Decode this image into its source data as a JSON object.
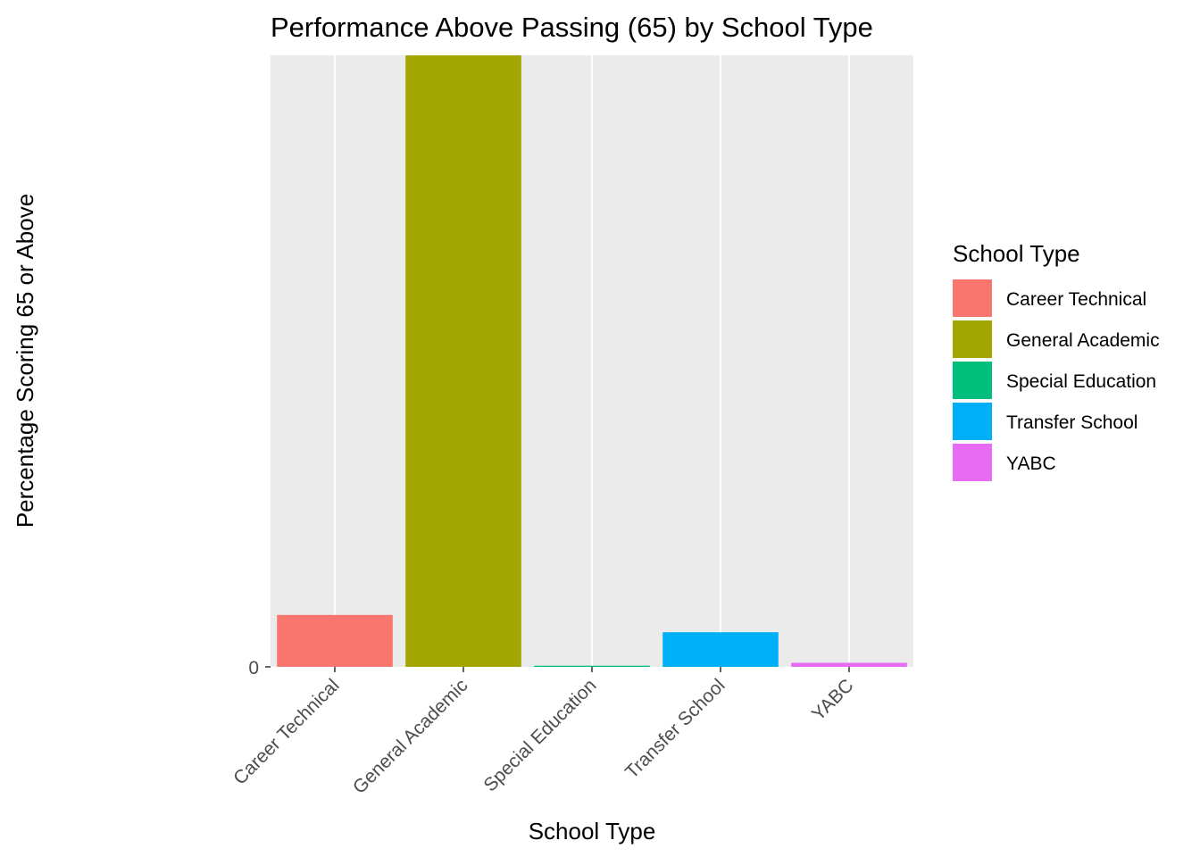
{
  "chart_data": {
    "type": "bar",
    "title": "Performance Above Passing (65) by School Type",
    "xlabel": "School Type",
    "ylabel": "Percentage Scoring 65 or Above",
    "categories": [
      "Career Technical",
      "General Academic",
      "Special Education",
      "Transfer School",
      "YABC"
    ],
    "values": [
      4.5,
      53.0,
      0.1,
      3.0,
      0.35
    ],
    "ylim": [
      0,
      53
    ],
    "colors": [
      "#F8766D",
      "#A3A500",
      "#00BF7D",
      "#00B0F6",
      "#E76BF3"
    ],
    "y_tick_label": "0",
    "grid": true,
    "legend": {
      "title": "School Type",
      "position": "right",
      "entries": [
        "Career Technical",
        "General Academic",
        "Special Education",
        "Transfer School",
        "YABC"
      ]
    }
  }
}
